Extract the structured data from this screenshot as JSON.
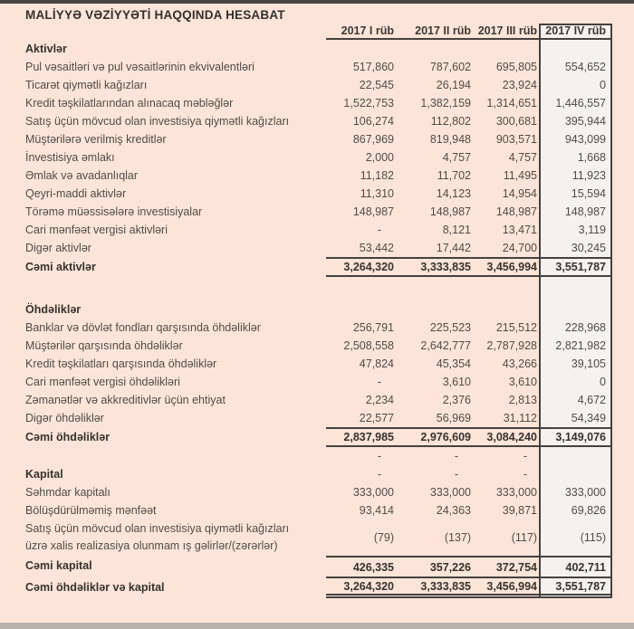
{
  "page": {
    "title": "MALİYYƏ VƏZİYYƏTİ HAQQINDA HESABAT",
    "background_color": "#fce5d8",
    "highlight_column_color": "#f4f2ef",
    "border_color": "#45413e"
  },
  "table": {
    "columns": [
      "2017 I rüb",
      "2017 II rüb",
      "2017 III rüb",
      "2017 IV rüb"
    ],
    "rows": [
      {
        "type": "heading",
        "label": "Aktivlər"
      },
      {
        "type": "data",
        "label": "Pul vəsaitləri və pul vəsaitlərinin ekvivalentləri",
        "values": [
          "517,860",
          "787,602",
          "695,805",
          "554,652"
        ]
      },
      {
        "type": "data",
        "label": "Ticarət qiymətli kağızları",
        "values": [
          "22,545",
          "26,194",
          "23,924",
          "0"
        ]
      },
      {
        "type": "data",
        "label": "Kredit təşkilatlarından alınacaq məbləğlər",
        "values": [
          "1,522,753",
          "1,382,159",
          "1,314,651",
          "1,446,557"
        ]
      },
      {
        "type": "data",
        "label": "Satış üçün mövcud olan investisiya qiymətli kağızları",
        "values": [
          "106,274",
          "112,802",
          "300,681",
          "395,944"
        ]
      },
      {
        "type": "data",
        "label": "Müştərilərə verilmiş kreditlər",
        "values": [
          "867,969",
          "819,948",
          "903,571",
          "943,099"
        ]
      },
      {
        "type": "data",
        "label": "İnvestisiya əmlakı",
        "values": [
          "2,000",
          "4,757",
          "4,757",
          "1,668"
        ]
      },
      {
        "type": "data",
        "label": "Əmlak və avadanlıqlar",
        "values": [
          "11,182",
          "11,702",
          "11,495",
          "11,923"
        ]
      },
      {
        "type": "data",
        "label": "Qeyri-maddi aktivlər",
        "values": [
          "11,310",
          "14,123",
          "14,954",
          "15,594"
        ]
      },
      {
        "type": "data",
        "label": "Törəmə müəssisələrə investisiyalar",
        "values": [
          "148,987",
          "148,987",
          "148,987",
          "148,987"
        ]
      },
      {
        "type": "data",
        "label": "Cari mənfəət vergisi aktivləri",
        "values": [
          "-",
          "8,121",
          "13,471",
          "3,119"
        ]
      },
      {
        "type": "data",
        "label": "Digər aktivlər",
        "values": [
          "53,442",
          "17,442",
          "24,700",
          "30,245"
        ]
      },
      {
        "type": "total",
        "label": "Cəmi aktivlər",
        "values": [
          "3,264,320",
          "3,333,835",
          "3,456,994",
          "3,551,787"
        ]
      },
      {
        "type": "blank",
        "label": ""
      },
      {
        "type": "heading",
        "label": "Öhdəliklər"
      },
      {
        "type": "data",
        "label": "Banklar və dövlət fondları qarşısında öhdəliklər",
        "values": [
          "256,791",
          "225,523",
          "215,512",
          "228,968"
        ]
      },
      {
        "type": "data",
        "label": "Müştərilər qarşısında öhdəliklər",
        "values": [
          "2,508,558",
          "2,642,777",
          "2,787,928",
          "2,821,982"
        ]
      },
      {
        "type": "data",
        "label": "Kredit təşkilatları qarşısında öhdəliklər",
        "values": [
          "47,824",
          "45,354",
          "43,266",
          "39,105"
        ]
      },
      {
        "type": "data",
        "label": "Cari mənfəət vergisi öhdəlikləri",
        "values": [
          "-",
          "3,610",
          "3,610",
          "0"
        ]
      },
      {
        "type": "data",
        "label": "Zəmanətlər və akkreditivlər üçün ehtiyat",
        "values": [
          "2,234",
          "2,376",
          "2,813",
          "4,672"
        ]
      },
      {
        "type": "data",
        "label": "Digər öhdəliklər",
        "values": [
          "22,577",
          "56,969",
          "31,112",
          "54,349"
        ]
      },
      {
        "type": "total",
        "label": "Cəmi öhdəliklər",
        "values": [
          "2,837,985",
          "2,976,609",
          "3,084,240",
          "3,149,076"
        ]
      },
      {
        "type": "data",
        "label": "",
        "values": [
          "-",
          "-",
          "-",
          ""
        ]
      },
      {
        "type": "heading-dash",
        "label": "Kapital",
        "values": [
          "-",
          "-",
          "-",
          ""
        ]
      },
      {
        "type": "data",
        "label": "Səhmdar kapitalı",
        "values": [
          "333,000",
          "333,000",
          "333,000",
          "333,000"
        ]
      },
      {
        "type": "data",
        "label": "Bölüşdürülməmiş mənfəət",
        "values": [
          "93,414",
          "24,363",
          "39,871",
          "69,826"
        ]
      },
      {
        "type": "data2",
        "label": "Satış üçün mövcud olan investisiya qiymətli kağızları",
        "label2": "üzrə xalis realizasiya olunmam ış gəlirlər/(zərərlər)",
        "values": [
          "(79)",
          "(137)",
          "(117)",
          "(115)"
        ]
      },
      {
        "type": "total-top",
        "label": "Cəmi kapital",
        "values": [
          "426,335",
          "357,226",
          "372,754",
          "402,711"
        ]
      },
      {
        "type": "total-double",
        "label": "Cəmi öhdəliklər və kapital",
        "values": [
          "3,264,320",
          "3,333,835",
          "3,456,994",
          "3,551,787"
        ]
      }
    ]
  }
}
